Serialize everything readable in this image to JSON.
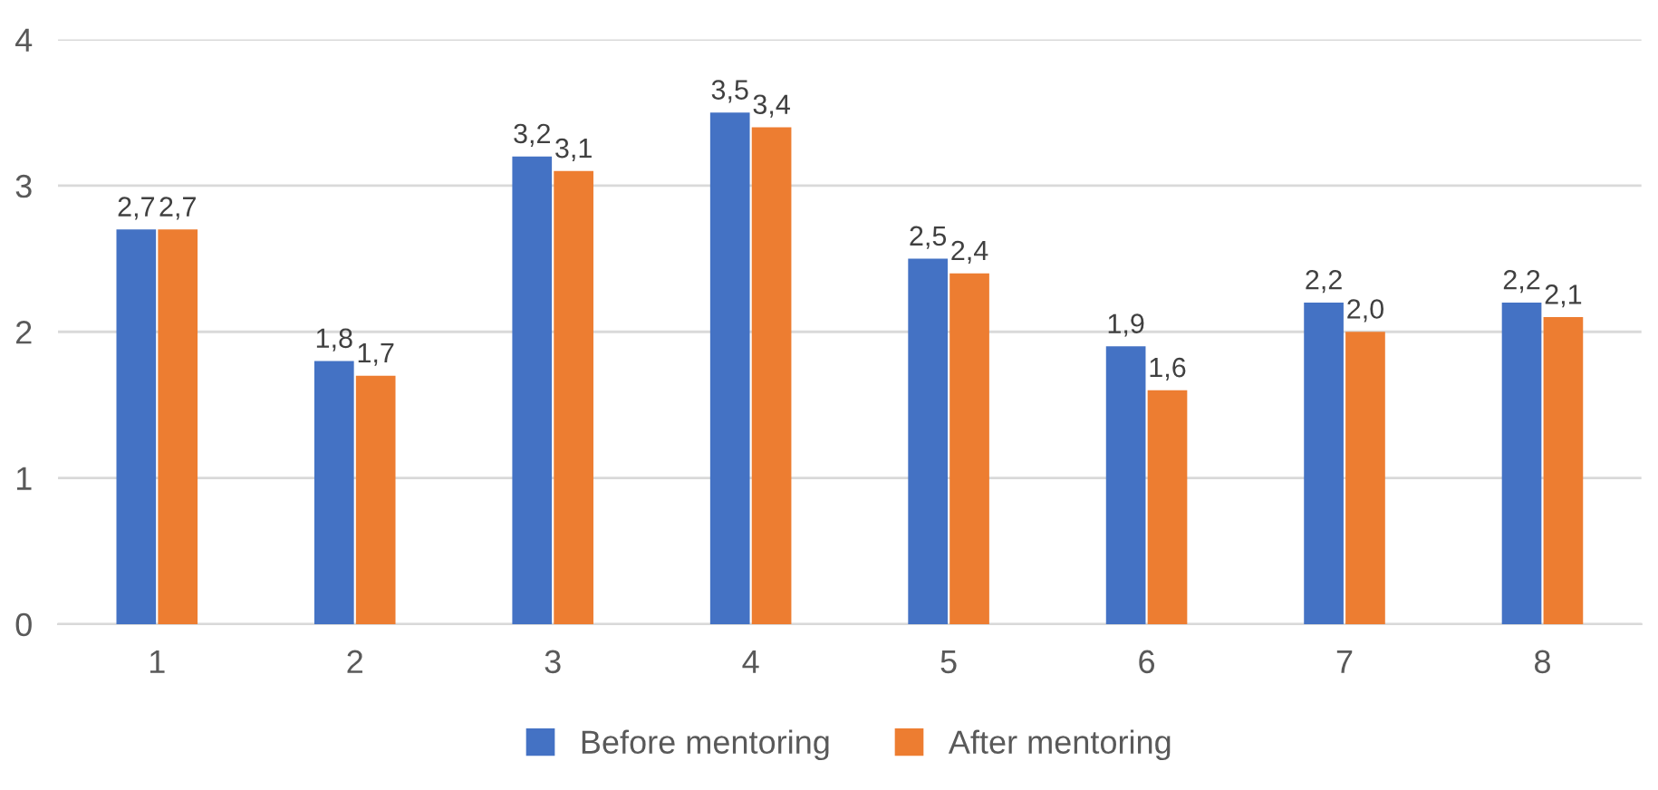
{
  "chart_data": {
    "type": "bar",
    "categories": [
      "1",
      "2",
      "3",
      "4",
      "5",
      "6",
      "7",
      "8"
    ],
    "series": [
      {
        "name": "Before mentoring",
        "color": "#4472c4",
        "values": [
          2.7,
          1.8,
          3.2,
          3.5,
          2.5,
          1.9,
          2.2,
          2.2
        ],
        "value_labels": [
          "2,7",
          "1,8",
          "3,2",
          "3,5",
          "2,5",
          "1,9",
          "2,2",
          "2,2"
        ]
      },
      {
        "name": "After mentoring",
        "color": "#ed7d31",
        "values": [
          2.7,
          1.7,
          3.1,
          3.4,
          2.4,
          1.6,
          2.0,
          2.1
        ],
        "value_labels": [
          "2,7",
          "1,7",
          "3,1",
          "3,4",
          "2,4",
          "1,6",
          "2,0",
          "2,1"
        ]
      }
    ],
    "ylim": [
      0,
      4
    ],
    "yticks": [
      0,
      1,
      2,
      3,
      4
    ],
    "grid": "y",
    "legend": "bottom"
  }
}
